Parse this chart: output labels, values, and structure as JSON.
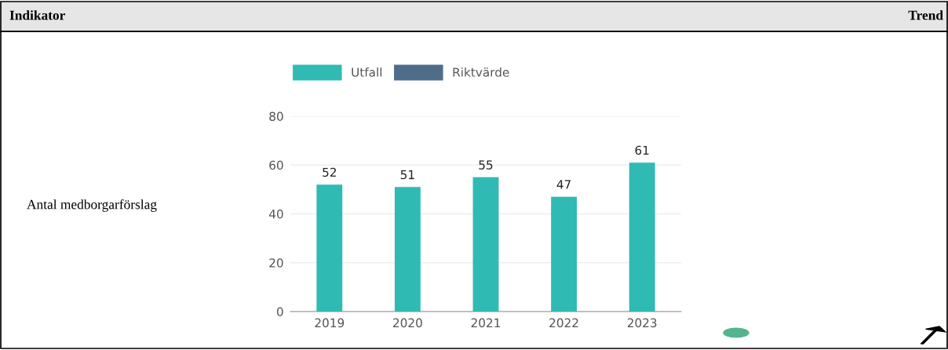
{
  "chart_data": {
    "type": "bar",
    "categories": [
      "2019",
      "2020",
      "2021",
      "2022",
      "2023"
    ],
    "series": [
      {
        "name": "Utfall",
        "color": "#2fbbb3",
        "values": [
          52,
          51,
          55,
          47,
          61
        ]
      },
      {
        "name": "Riktvärde",
        "color": "#4f6d8a",
        "values": [
          null,
          null,
          null,
          null,
          null
        ]
      }
    ],
    "ylim": [
      0,
      80
    ],
    "yticks": [
      0,
      20,
      40,
      60,
      80
    ],
    "grid": "y",
    "legend": "top left",
    "data_labels": true,
    "annotations": [
      "Indikator",
      "Trend",
      "Antal medborgarförslag"
    ]
  }
}
